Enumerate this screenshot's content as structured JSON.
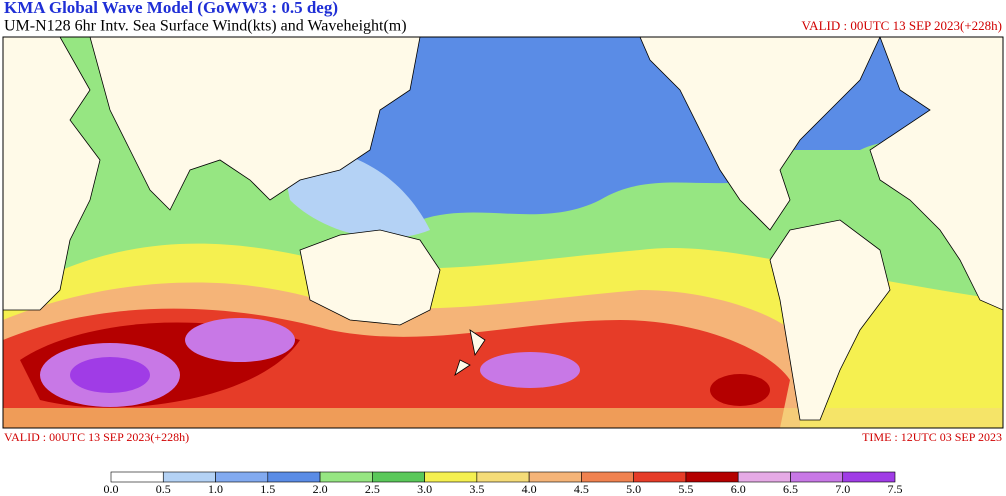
{
  "header": {
    "title": "KMA  Global Wave Model (GoWW3 : 0.5 deg)",
    "subtitle": "UM-N128  6hr Intv. Sea Surface Wind(kts) and Waveheight(m)",
    "valid_top": "VALID : 00UTC 13 SEP 2023(+228h)"
  },
  "footer": {
    "valid": "VALID : 00UTC 13 SEP 2023(+228h)",
    "time": "TIME : 12UTC 03 SEP 2023"
  },
  "colorbar": {
    "ticks": [
      {
        "value": 0,
        "label": "0.0"
      },
      {
        "value": 0.5,
        "label": "0.5"
      },
      {
        "value": 1,
        "label": "1.0"
      },
      {
        "value": 1.5,
        "label": "1.5"
      },
      {
        "value": 2,
        "label": "2.0"
      },
      {
        "value": 2.5,
        "label": "2.5"
      },
      {
        "value": 3,
        "label": "3.0"
      },
      {
        "value": 3.5,
        "label": "3.5"
      },
      {
        "value": 4,
        "label": "4.0"
      },
      {
        "value": 4.5,
        "label": "4.5"
      },
      {
        "value": 5,
        "label": "5.0"
      },
      {
        "value": 5.5,
        "label": "5.5"
      },
      {
        "value": 6,
        "label": "6.0"
      },
      {
        "value": 6.5,
        "label": "6.5"
      },
      {
        "value": 7,
        "label": "7.0"
      },
      {
        "value": 7.5,
        "label": "7.5"
      }
    ],
    "colors": [
      "#ffffff",
      "#b4d2f5",
      "#82aaf0",
      "#5a8ce6",
      "#96e682",
      "#5ac85a",
      "#f5f050",
      "#f5dc78",
      "#f5b478",
      "#f08250",
      "#e63c28",
      "#b40000",
      "#e6aae6",
      "#c878e6",
      "#a03ce6"
    ]
  }
}
